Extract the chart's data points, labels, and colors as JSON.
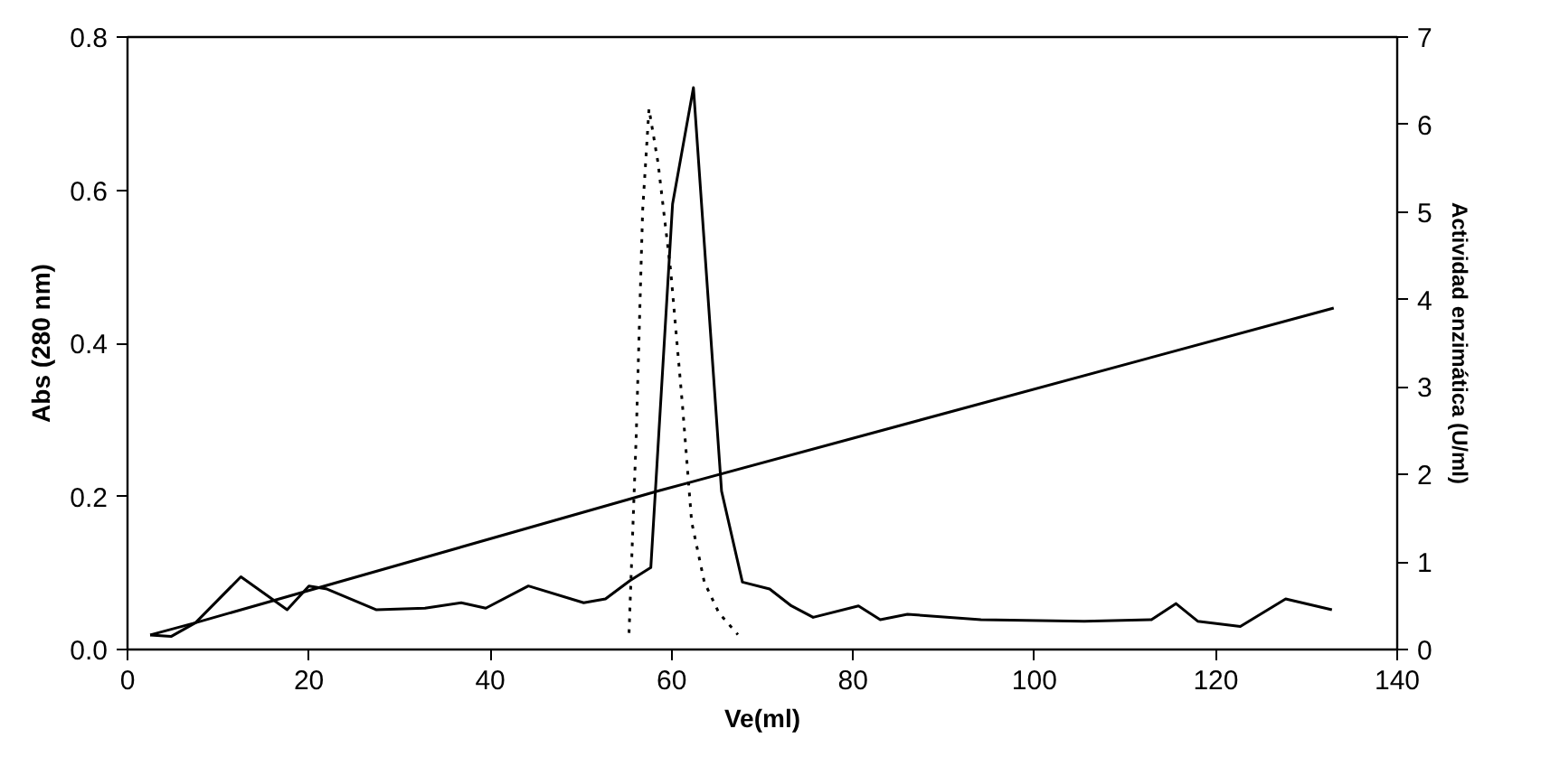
{
  "chart_data": {
    "type": "line",
    "xlabel": "Ve(ml)",
    "ylabel": "Abs (280 nm)",
    "y2label": "Actividad enzimática (U/ml)",
    "xlim": [
      0,
      140
    ],
    "xticks": [
      0,
      20,
      40,
      60,
      80,
      100,
      120,
      140
    ],
    "ylim": [
      0,
      0.8
    ],
    "yticks": [
      {
        "value": 0,
        "label": "0.0"
      },
      {
        "value": 0.2,
        "label": "0.2"
      },
      {
        "value": 0.4,
        "label": "0.4"
      },
      {
        "value": 0.6,
        "label": "0.6"
      },
      {
        "value": 0.8,
        "label": "0.8"
      }
    ],
    "y2lim": [
      0,
      7
    ],
    "y2ticks": [
      0,
      1,
      2,
      3,
      4,
      5,
      6,
      7
    ],
    "grid": false,
    "marker": "none",
    "series": [
      {
        "color": "#000000",
        "line_style": "solid",
        "x": [
          2.5,
          4.8,
          7.5,
          12.5,
          17.6,
          20,
          22,
          27.4,
          32.8,
          36.8,
          39.5,
          44.2,
          50.3,
          52.7,
          55.4,
          57.7,
          60.1,
          62.4,
          65.5,
          67.8,
          70.8,
          73.2,
          75.6,
          80.6,
          83,
          86,
          94.1,
          105.5,
          112.9,
          115.6,
          118,
          122.7,
          127.7,
          132.8
        ],
        "values": [
          0.019,
          0.017,
          0.035,
          0.095,
          0.052,
          0.083,
          0.079,
          0.052,
          0.054,
          0.061,
          0.054,
          0.083,
          0.061,
          0.066,
          0.09,
          0.107,
          0.582,
          0.734,
          0.207,
          0.088,
          0.079,
          0.057,
          0.042,
          0.057,
          0.039,
          0.046,
          0.039,
          0.037,
          0.039,
          0.06,
          0.037,
          0.03,
          0.066,
          0.052
        ]
      },
      {
        "color": "#000000",
        "line_style": "solid",
        "x": [
          2.5,
          7.5,
          58.5,
          133
        ],
        "values": [
          0.019,
          0.035,
          0.207,
          0.446
        ]
      },
      {
        "color": "#000000",
        "line_style": "dotted",
        "axis": "y2",
        "x": [
          55.3,
          56.1,
          56.8,
          57.5,
          58.5,
          59.9,
          61.2,
          62.2,
          63.6,
          65.2,
          67.3
        ],
        "values": [
          0.19,
          2.47,
          5.02,
          6.18,
          5.56,
          4.32,
          2.78,
          1.46,
          0.77,
          0.42,
          0.17
        ]
      }
    ]
  }
}
